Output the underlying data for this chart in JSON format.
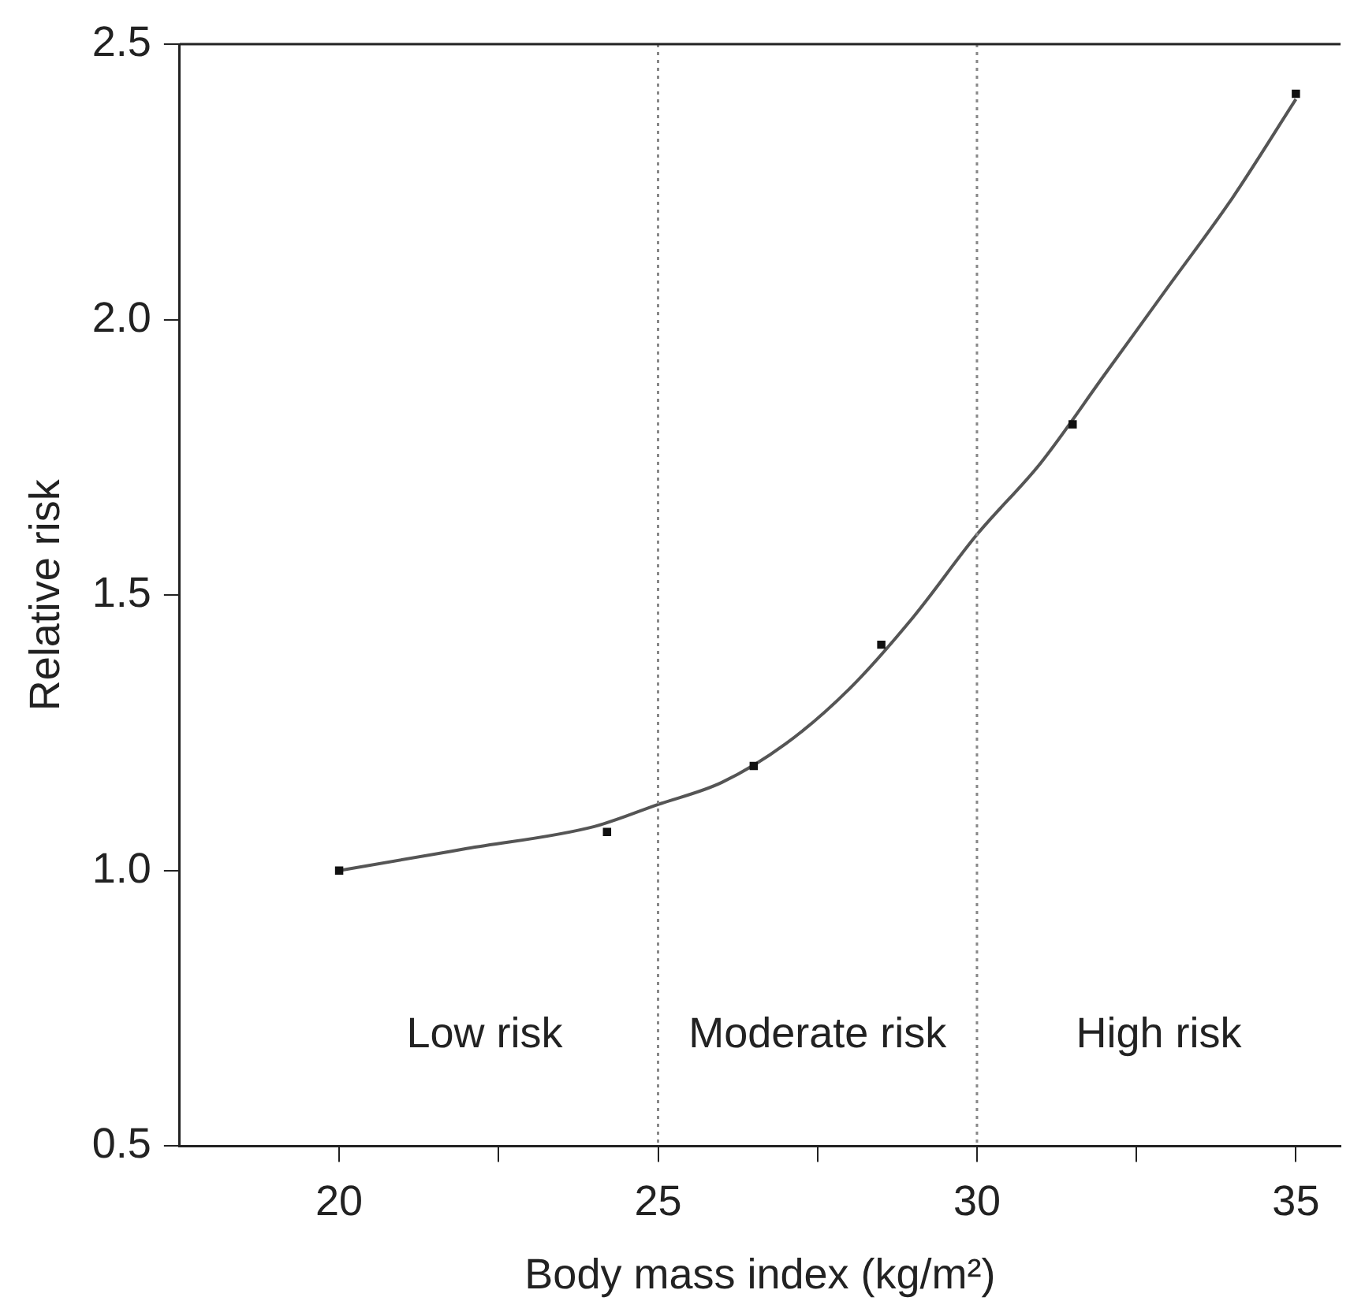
{
  "chart_data": {
    "type": "scatter",
    "xlabel": "Body mass index (kg/m²)",
    "ylabel": "Relative risk",
    "xlim": [
      17.5,
      35.7
    ],
    "ylim": [
      0.5,
      2.5
    ],
    "xticks": [
      20,
      {
        "value": 22.5,
        "label": null
      },
      25,
      {
        "value": 27.5,
        "label": null
      },
      30,
      {
        "value": 32.5,
        "label": null
      },
      35
    ],
    "yticks": [
      0.5,
      {
        "value": 1,
        "label": "1.0"
      },
      1.5,
      {
        "value": 2,
        "label": "2.0"
      },
      2.5
    ],
    "grid": false,
    "legend": false,
    "marker": "square",
    "series": [
      {
        "type": "scatter",
        "color": "#111111",
        "x": [
          20,
          24.2,
          26.5,
          28.5,
          31.5,
          35
        ],
        "values": [
          1.0,
          1.07,
          1.19,
          1.41,
          1.81,
          2.41
        ]
      },
      {
        "type": "line",
        "color": "#555555",
        "marker": "none",
        "line_style": "solid",
        "x": [
          20,
          22,
          24,
          25,
          26,
          27,
          28,
          29,
          30,
          31,
          32,
          33,
          34,
          35
        ],
        "values": [
          1.0,
          1.04,
          1.08,
          1.12,
          1.16,
          1.23,
          1.33,
          1.46,
          1.61,
          1.74,
          1.9,
          2.06,
          2.22,
          2.4
        ]
      }
    ],
    "ref_lines": [
      {
        "axis": "x",
        "value": 25,
        "color": "#888888",
        "line_style": "dotted"
      },
      {
        "axis": "x",
        "value": 30,
        "color": "#888888",
        "line_style": "dotted"
      }
    ],
    "annotations": [
      "Low risk",
      "Moderate risk",
      "High risk"
    ]
  }
}
